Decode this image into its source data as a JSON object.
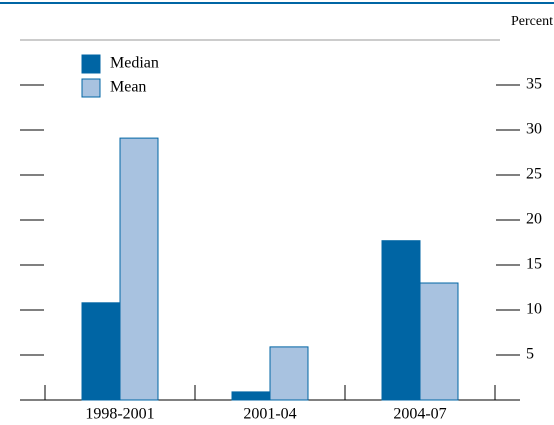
{
  "chart_data": {
    "type": "bar",
    "y_label": "Percent",
    "categories": [
      "1998-2001",
      "2001-04",
      "2004-07"
    ],
    "series": [
      {
        "name": "Median",
        "color": "#0065a4",
        "values": [
          10.8,
          0.9,
          17.7
        ]
      },
      {
        "name": "Mean",
        "color": "#a8c2e0",
        "values": [
          29.1,
          5.9,
          13.0
        ]
      }
    ],
    "ylim": [
      0,
      40
    ],
    "yticks": [
      5,
      10,
      15,
      20,
      25,
      30,
      35
    ]
  }
}
